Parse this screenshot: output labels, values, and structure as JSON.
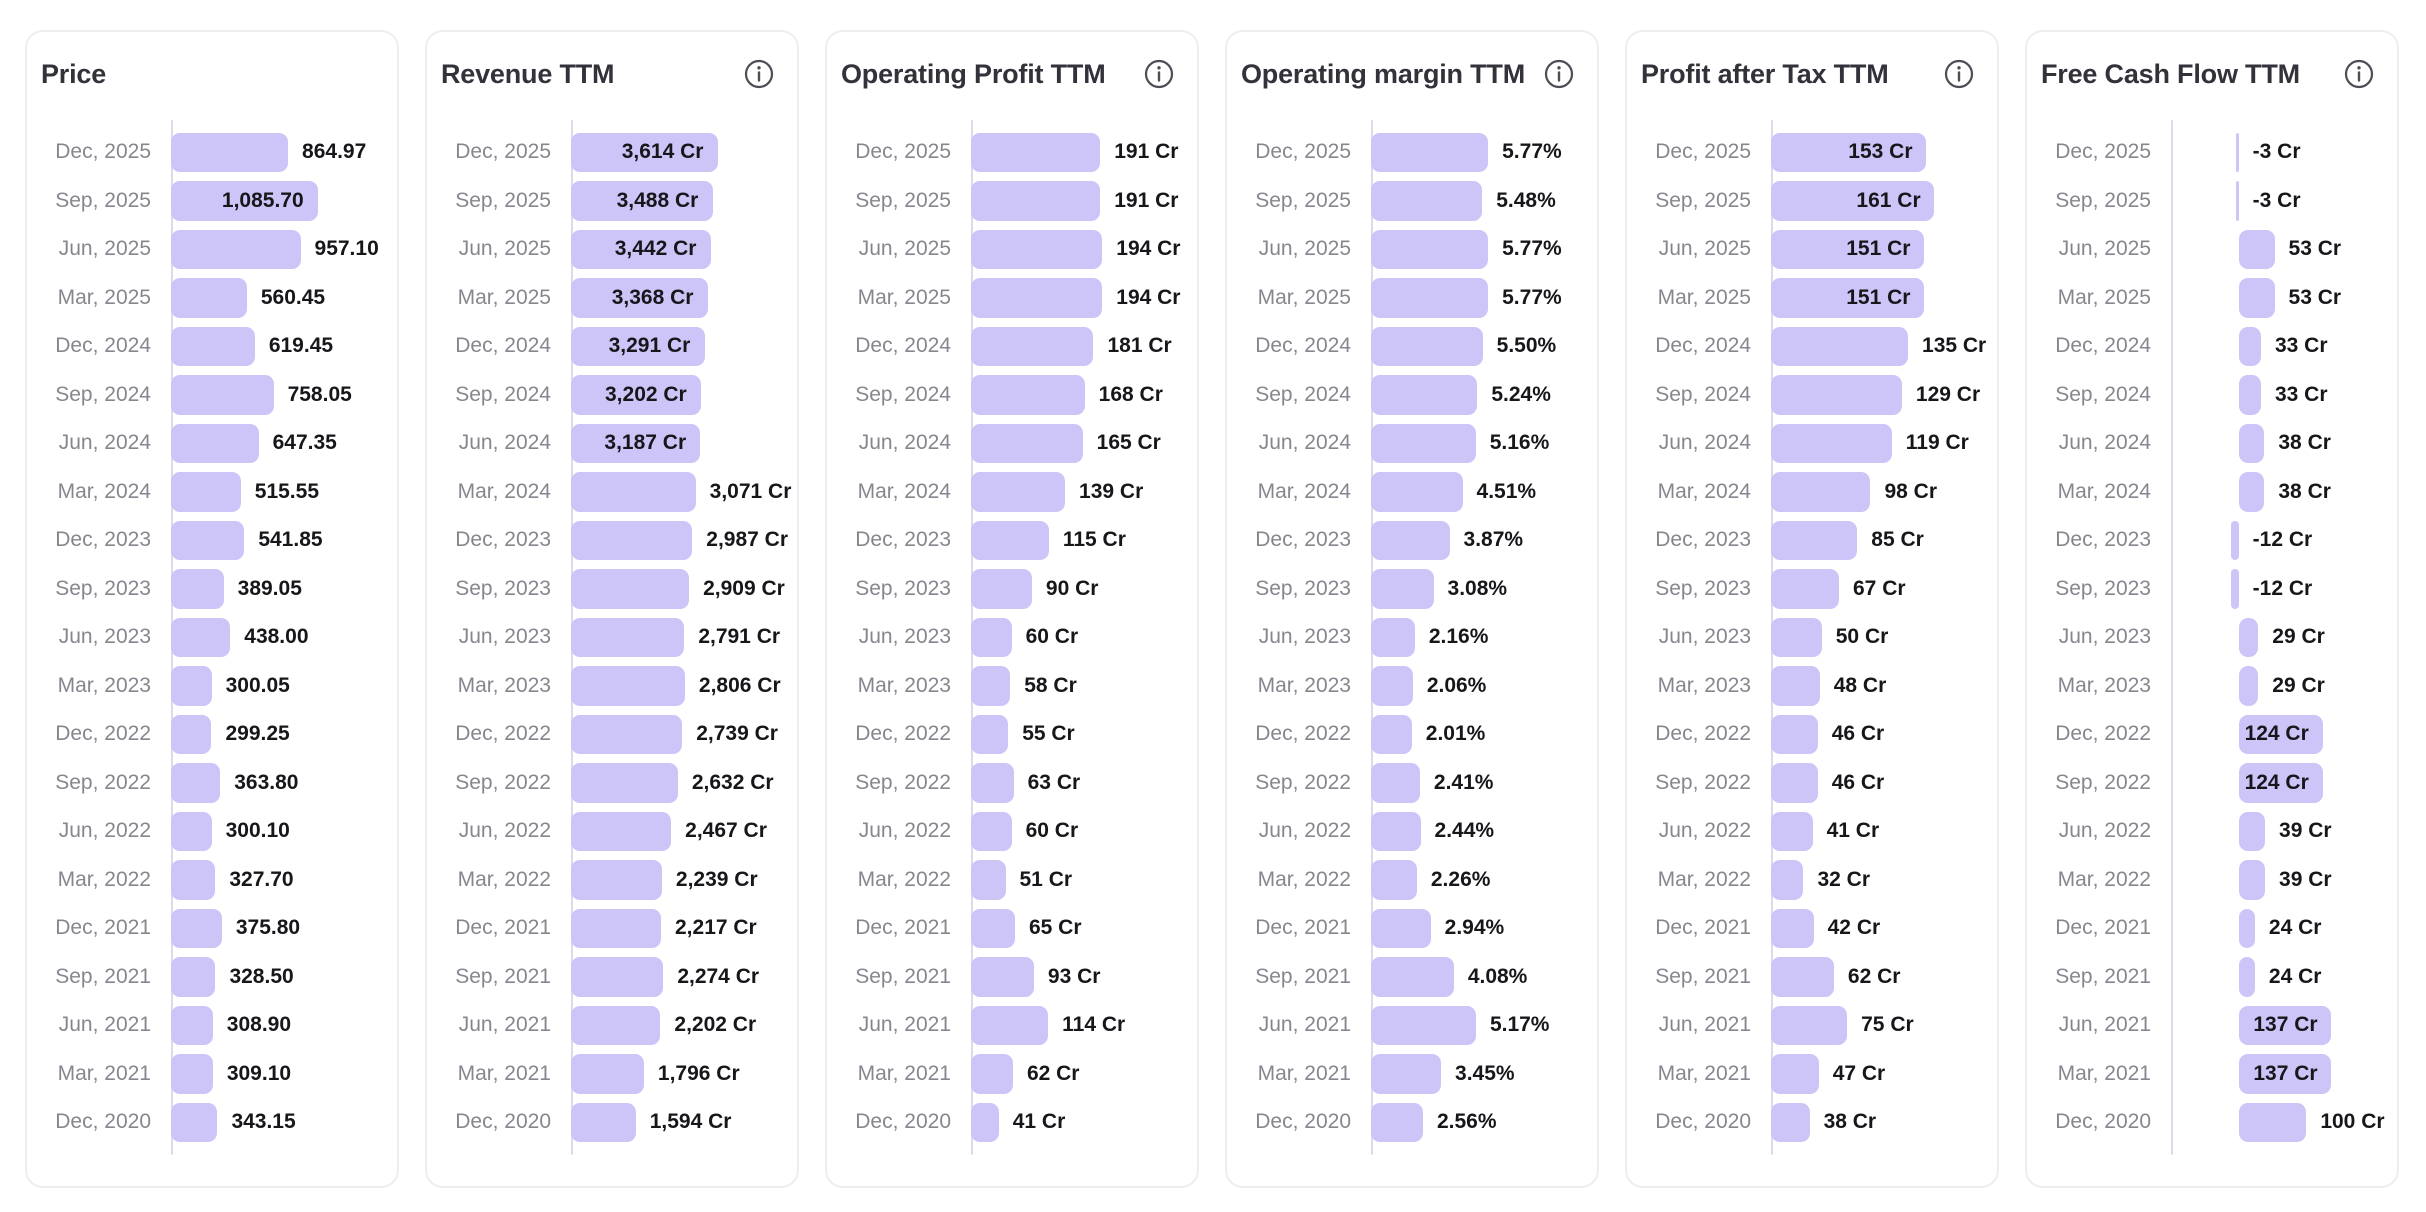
{
  "icons": {
    "info": "circled-i-info-icon"
  },
  "style": {
    "bar_color": "#cdc4f8",
    "value_label_color": "#17171b",
    "category_label_color": "#86868f",
    "title_color": "#32323a",
    "axis_line_color": "#d9dde8",
    "card_border_color": "#ededf2",
    "card_background": "#ffffff",
    "page_background": "#ffffff"
  },
  "chart_data": [
    {
      "type": "bar",
      "orientation": "horizontal",
      "title": "Price",
      "has_info_icon": false,
      "unit": "",
      "grid": false,
      "xlim": [
        0,
        1500
      ],
      "categories": [
        "Dec, 2025",
        "Sep, 2025",
        "Jun, 2025",
        "Mar, 2025",
        "Dec, 2024",
        "Sep, 2024",
        "Jun, 2024",
        "Mar, 2024",
        "Dec, 2023",
        "Sep, 2023",
        "Jun, 2023",
        "Mar, 2023",
        "Dec, 2022",
        "Sep, 2022",
        "Jun, 2022",
        "Mar, 2022",
        "Dec, 2021",
        "Sep, 2021",
        "Jun, 2021",
        "Mar, 2021",
        "Dec, 2020"
      ],
      "values": [
        864.97,
        1085.7,
        957.1,
        560.45,
        619.45,
        758.05,
        647.35,
        515.55,
        541.85,
        389.05,
        438.0,
        300.05,
        299.25,
        363.8,
        300.1,
        327.7,
        375.8,
        328.5,
        308.9,
        309.1,
        343.15
      ],
      "value_labels": [
        "864.97",
        "1,085.70",
        "957.10",
        "560.45",
        "619.45",
        "758.05",
        "647.35",
        "515.55",
        "541.85",
        "389.05",
        "438.00",
        "300.05",
        "299.25",
        "363.80",
        "300.10",
        "327.70",
        "375.80",
        "328.50",
        "308.90",
        "309.10",
        "343.15"
      ]
    },
    {
      "type": "bar",
      "orientation": "horizontal",
      "title": "Revenue TTM",
      "has_info_icon": true,
      "unit": "Cr",
      "grid": false,
      "xlim": [
        0,
        5000
      ],
      "categories": [
        "Dec, 2025",
        "Sep, 2025",
        "Jun, 2025",
        "Mar, 2025",
        "Dec, 2024",
        "Sep, 2024",
        "Jun, 2024",
        "Mar, 2024",
        "Dec, 2023",
        "Sep, 2023",
        "Jun, 2023",
        "Mar, 2023",
        "Dec, 2022",
        "Sep, 2022",
        "Jun, 2022",
        "Mar, 2022",
        "Dec, 2021",
        "Sep, 2021",
        "Jun, 2021",
        "Mar, 2021",
        "Dec, 2020"
      ],
      "values": [
        3614,
        3488,
        3442,
        3368,
        3291,
        3202,
        3187,
        3071,
        2987,
        2909,
        2791,
        2806,
        2739,
        2632,
        2467,
        2239,
        2217,
        2274,
        2202,
        1796,
        1594
      ],
      "value_labels": [
        "3,614 Cr",
        "3,488 Cr",
        "3,442 Cr",
        "3,368 Cr",
        "3,291 Cr",
        "3,202 Cr",
        "3,187 Cr",
        "3,071 Cr",
        "2,987 Cr",
        "2,909 Cr",
        "2,791 Cr",
        "2,806 Cr",
        "2,739 Cr",
        "2,632 Cr",
        "2,467 Cr",
        "2,239 Cr",
        "2,217 Cr",
        "2,274 Cr",
        "2,202 Cr",
        "1,796 Cr",
        "1,594 Cr"
      ]
    },
    {
      "type": "bar",
      "orientation": "horizontal",
      "title": "Operating Profit TTM",
      "has_info_icon": true,
      "unit": "Cr",
      "grid": false,
      "xlim": [
        0,
        300
      ],
      "categories": [
        "Dec, 2025",
        "Sep, 2025",
        "Jun, 2025",
        "Mar, 2025",
        "Dec, 2024",
        "Sep, 2024",
        "Jun, 2024",
        "Mar, 2024",
        "Dec, 2023",
        "Sep, 2023",
        "Jun, 2023",
        "Mar, 2023",
        "Dec, 2022",
        "Sep, 2022",
        "Jun, 2022",
        "Mar, 2022",
        "Dec, 2021",
        "Sep, 2021",
        "Jun, 2021",
        "Mar, 2021",
        "Dec, 2020"
      ],
      "values": [
        191,
        191,
        194,
        194,
        181,
        168,
        165,
        139,
        115,
        90,
        60,
        58,
        55,
        63,
        60,
        51,
        65,
        93,
        114,
        62,
        41
      ],
      "value_labels": [
        "191 Cr",
        "191 Cr",
        "194 Cr",
        "194 Cr",
        "181 Cr",
        "168 Cr",
        "165 Cr",
        "139 Cr",
        "115 Cr",
        "90 Cr",
        "60 Cr",
        "58 Cr",
        "55 Cr",
        "63 Cr",
        "60 Cr",
        "51 Cr",
        "65 Cr",
        "93 Cr",
        "114 Cr",
        "62 Cr",
        "41 Cr"
      ]
    },
    {
      "type": "bar",
      "orientation": "horizontal",
      "title": "Operating margin TTM",
      "has_info_icon": true,
      "unit": "%",
      "grid": false,
      "xlim": [
        0,
        10
      ],
      "categories": [
        "Dec, 2025",
        "Sep, 2025",
        "Jun, 2025",
        "Mar, 2025",
        "Dec, 2024",
        "Sep, 2024",
        "Jun, 2024",
        "Mar, 2024",
        "Dec, 2023",
        "Sep, 2023",
        "Jun, 2023",
        "Mar, 2023",
        "Dec, 2022",
        "Sep, 2022",
        "Jun, 2022",
        "Mar, 2022",
        "Dec, 2021",
        "Sep, 2021",
        "Jun, 2021",
        "Mar, 2021",
        "Dec, 2020"
      ],
      "values": [
        5.77,
        5.48,
        5.77,
        5.77,
        5.5,
        5.24,
        5.16,
        4.51,
        3.87,
        3.08,
        2.16,
        2.06,
        2.01,
        2.41,
        2.44,
        2.26,
        2.94,
        4.08,
        5.17,
        3.45,
        2.56
      ],
      "value_labels": [
        "5.77%",
        "5.48%",
        "5.77%",
        "5.77%",
        "5.50%",
        "5.24%",
        "5.16%",
        "4.51%",
        "3.87%",
        "3.08%",
        "2.16%",
        "2.06%",
        "2.01%",
        "2.41%",
        "2.44%",
        "2.26%",
        "2.94%",
        "4.08%",
        "5.17%",
        "3.45%",
        "2.56%"
      ]
    },
    {
      "type": "bar",
      "orientation": "horizontal",
      "title": "Profit after Tax TTM",
      "has_info_icon": true,
      "unit": "Cr",
      "grid": false,
      "xlim": [
        0,
        200
      ],
      "categories": [
        "Dec, 2025",
        "Sep, 2025",
        "Jun, 2025",
        "Mar, 2025",
        "Dec, 2024",
        "Sep, 2024",
        "Jun, 2024",
        "Mar, 2024",
        "Dec, 2023",
        "Sep, 2023",
        "Jun, 2023",
        "Mar, 2023",
        "Dec, 2022",
        "Sep, 2022",
        "Jun, 2022",
        "Mar, 2022",
        "Dec, 2021",
        "Sep, 2021",
        "Jun, 2021",
        "Mar, 2021",
        "Dec, 2020"
      ],
      "values": [
        153,
        161,
        151,
        151,
        135,
        129,
        119,
        98,
        85,
        67,
        50,
        48,
        46,
        46,
        41,
        32,
        42,
        62,
        75,
        47,
        38
      ],
      "value_labels": [
        "153 Cr",
        "161 Cr",
        "151 Cr",
        "151 Cr",
        "135 Cr",
        "129 Cr",
        "119 Cr",
        "98 Cr",
        "85 Cr",
        "67 Cr",
        "50 Cr",
        "48 Cr",
        "46 Cr",
        "46 Cr",
        "41 Cr",
        "32 Cr",
        "42 Cr",
        "62 Cr",
        "75 Cr",
        "47 Cr",
        "38 Cr"
      ]
    },
    {
      "type": "bar",
      "orientation": "horizontal",
      "title": "Free Cash Flow TTM",
      "has_info_icon": true,
      "unit": "Cr",
      "grid": false,
      "xlim": [
        -100,
        200
      ],
      "categories": [
        "Dec, 2025",
        "Sep, 2025",
        "Jun, 2025",
        "Mar, 2025",
        "Dec, 2024",
        "Sep, 2024",
        "Jun, 2024",
        "Mar, 2024",
        "Dec, 2023",
        "Sep, 2023",
        "Jun, 2023",
        "Mar, 2023",
        "Dec, 2022",
        "Sep, 2022",
        "Jun, 2022",
        "Mar, 2022",
        "Dec, 2021",
        "Sep, 2021",
        "Jun, 2021",
        "Mar, 2021",
        "Dec, 2020"
      ],
      "values": [
        -3,
        -3,
        53,
        53,
        33,
        33,
        38,
        38,
        -12,
        -12,
        29,
        29,
        124,
        124,
        39,
        39,
        24,
        24,
        137,
        137,
        100
      ],
      "value_labels": [
        "-3 Cr",
        "-3 Cr",
        "53 Cr",
        "53 Cr",
        "33 Cr",
        "33 Cr",
        "38 Cr",
        "38 Cr",
        "-12 Cr",
        "-12 Cr",
        "29 Cr",
        "29 Cr",
        "124 Cr",
        "124 Cr",
        "39 Cr",
        "39 Cr",
        "24 Cr",
        "24 Cr",
        "137 Cr",
        "137 Cr",
        "100 Cr"
      ]
    }
  ]
}
